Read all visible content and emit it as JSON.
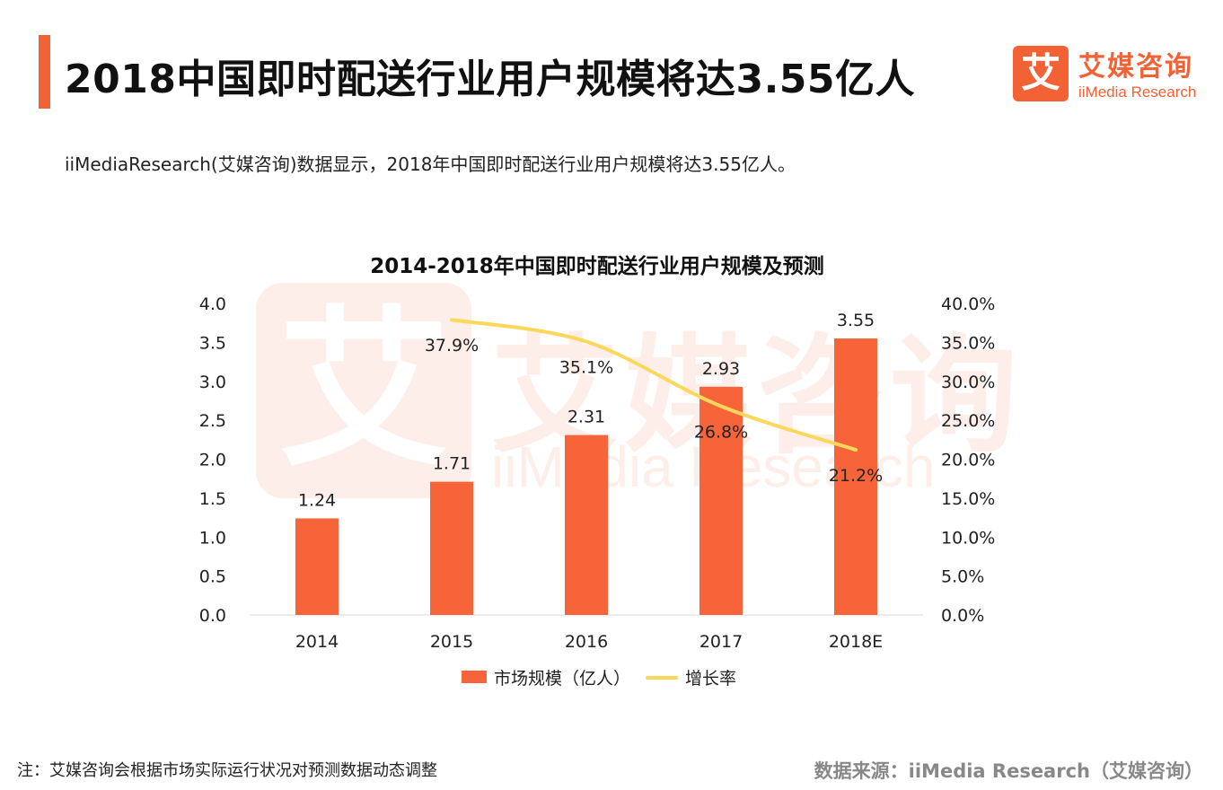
{
  "header": {
    "title": "2018中国即时配送行业用户规模将达3.55亿人",
    "logo_mark": "艾",
    "logo_cn": "艾媒咨询",
    "logo_en": "iiMedia Research"
  },
  "subtitle": "iiMediaResearch(艾媒咨询)数据显示，2018年中国即时配送行业用户规模将达3.55亿人。",
  "watermark": {
    "mark": "艾",
    "cn": "艾媒咨询",
    "en": "iiMedia Research"
  },
  "legend": {
    "bar_label": "市场规模（亿人）",
    "line_label": "增长率"
  },
  "footer": {
    "note": "注：艾媒咨询会根据市场实际运行状况对预测数据动态调整",
    "source": "数据来源：iiMedia Research（艾媒咨询）"
  },
  "colors": {
    "accent": "#f26234",
    "bar": "#f7643a",
    "line": "#fbd85b"
  },
  "chart_data": {
    "type": "bar",
    "title": "2014-2018年中国即时配送行业用户规模及预测",
    "categories": [
      "2014",
      "2015",
      "2016",
      "2017",
      "2018E"
    ],
    "series": [
      {
        "name": "市场规模（亿人）",
        "type": "bar",
        "axis": "left",
        "values": [
          1.24,
          1.71,
          2.31,
          2.93,
          3.55
        ],
        "labels": [
          "1.24",
          "1.71",
          "2.31",
          "2.93",
          "3.55"
        ]
      },
      {
        "name": "增长率",
        "type": "line",
        "axis": "right",
        "values": [
          null,
          37.9,
          35.1,
          26.8,
          21.2
        ],
        "labels": [
          "",
          "37.9%",
          "35.1%",
          "26.8%",
          "21.2%"
        ]
      }
    ],
    "ylim_left": [
      0,
      4.0
    ],
    "yticks_left": [
      "0.0",
      "0.5",
      "1.0",
      "1.5",
      "2.0",
      "2.5",
      "3.0",
      "3.5",
      "4.0"
    ],
    "ylim_right": [
      0,
      40
    ],
    "yticks_right": [
      "0.0%",
      "5.0%",
      "10.0%",
      "15.0%",
      "20.0%",
      "25.0%",
      "30.0%",
      "35.0%",
      "40.0%"
    ],
    "grid": false,
    "legend_position": "bottom"
  }
}
